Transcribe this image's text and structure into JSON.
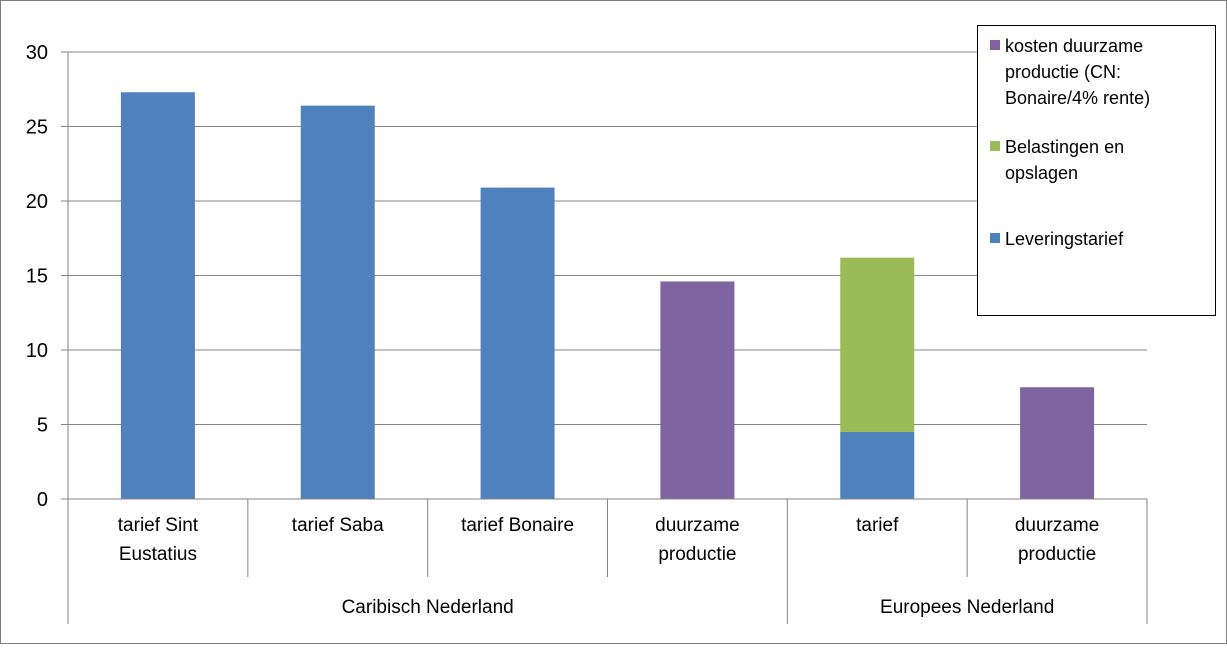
{
  "chart_data": {
    "type": "bar",
    "stacked": true,
    "title": "",
    "xlabel": "",
    "ylabel": "",
    "ylim": [
      0,
      30
    ],
    "yticks": [
      0,
      5,
      10,
      15,
      20,
      25,
      30
    ],
    "grid": true,
    "legend_position": "top-right",
    "categories": [
      [
        "tarief Sint",
        "Eustatius"
      ],
      [
        "tarief Saba"
      ],
      [
        "tarief Bonaire"
      ],
      [
        "duurzame",
        "productie"
      ],
      [
        "tarief"
      ],
      [
        "duurzame",
        "productie"
      ]
    ],
    "groups": [
      {
        "label": "Caribisch Nederland",
        "start": 0,
        "count": 4
      },
      {
        "label": "Europees Nederland",
        "start": 4,
        "count": 2
      }
    ],
    "series": [
      {
        "name": "Leveringstarief",
        "color": "#4f81bd",
        "values": [
          27.3,
          26.4,
          20.9,
          0,
          4.5,
          0
        ]
      },
      {
        "name": "Belastingen en opslagen",
        "color": "#9bbb59",
        "values": [
          0,
          0,
          0,
          0,
          11.7,
          0
        ]
      },
      {
        "name": "kosten duurzame productie (CN: Bonaire/4% rente)",
        "color": "#8064a2",
        "values": [
          0,
          0,
          0,
          14.6,
          0,
          7.5
        ]
      }
    ],
    "legend": [
      {
        "series": 2,
        "lines": [
          "kosten duurzame",
          "productie (CN:",
          "Bonaire/4% rente)"
        ]
      },
      {
        "series": 1,
        "lines": [
          "Belastingen en",
          "opslagen"
        ]
      },
      {
        "series": 0,
        "lines": [
          "Leveringstarief"
        ]
      }
    ]
  }
}
